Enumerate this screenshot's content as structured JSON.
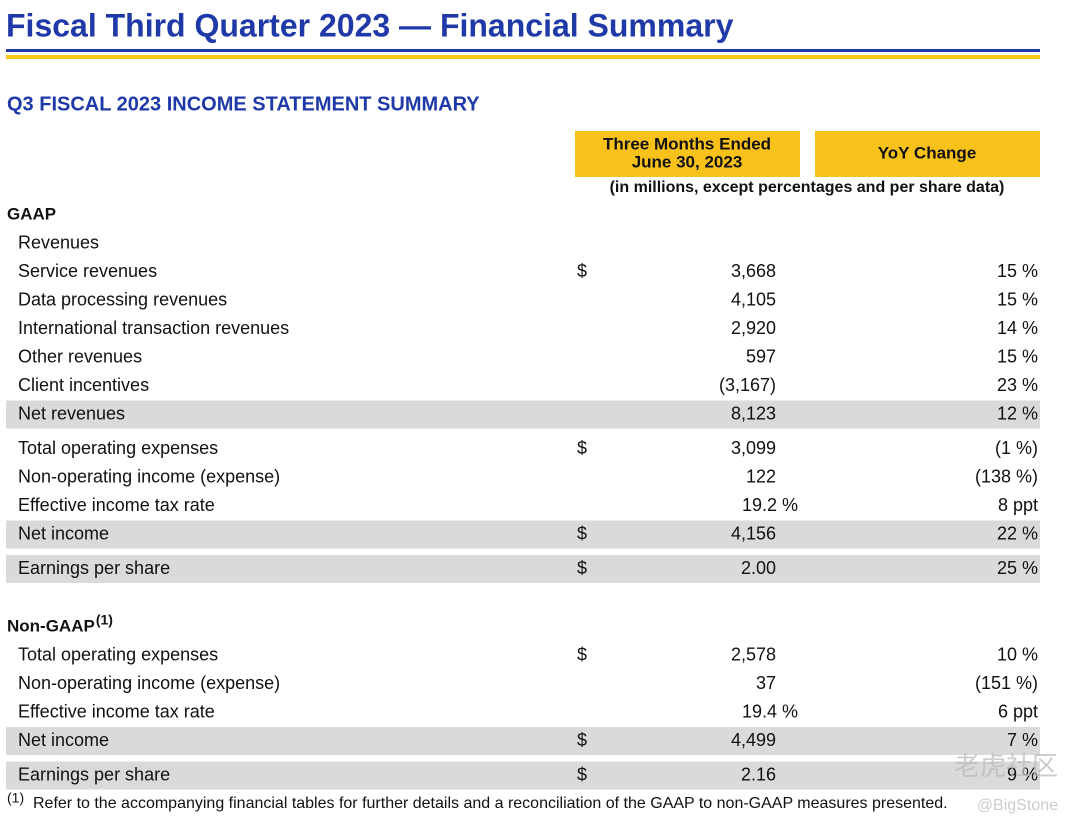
{
  "header": {
    "title": "Fiscal Third Quarter 2023 — Financial Summary",
    "subtitle": "Q3 FISCAL 2023 INCOME STATEMENT SUMMARY"
  },
  "table": {
    "columns": [
      [
        "Three Months Ended",
        "June 30, 2023"
      ],
      [
        "YoY Change"
      ]
    ],
    "units_note": "(in millions, except percentages and per share data)",
    "sections": [
      {
        "heading": "GAAP",
        "heading_note": null,
        "rows": [
          {
            "label": "Revenues",
            "currency": null,
            "value": null,
            "change": null,
            "shaded": false
          },
          {
            "label": "Service revenues",
            "currency": "$",
            "value": "3,668",
            "change": "15 %",
            "shaded": false
          },
          {
            "label": "Data processing revenues",
            "currency": null,
            "value": "4,105",
            "change": "15 %",
            "shaded": false
          },
          {
            "label": "International transaction revenues",
            "currency": null,
            "value": "2,920",
            "change": "14 %",
            "shaded": false
          },
          {
            "label": "Other revenues",
            "currency": null,
            "value": "597",
            "change": "15 %",
            "shaded": false
          },
          {
            "label": "Client incentives",
            "currency": null,
            "value": "(3,167)",
            "change": "23 %",
            "shaded": false
          },
          {
            "label": "Net revenues",
            "currency": null,
            "value": "8,123",
            "change": "12 %",
            "shaded": true
          },
          {
            "label": "Total operating expenses",
            "currency": "$",
            "value": "3,099",
            "change": "(1 %)",
            "shaded": false
          },
          {
            "label": "Non-operating income (expense)",
            "currency": null,
            "value": "122",
            "change": "(138 %)",
            "shaded": false
          },
          {
            "label": "Effective income tax rate",
            "currency": null,
            "value": "19.2 %",
            "change": "8 ppt",
            "shaded": false
          },
          {
            "label": "Net income",
            "currency": "$",
            "value": "4,156",
            "change": "22 %",
            "shaded": true
          },
          {
            "label": "Earnings per share",
            "currency": "$",
            "value": "2.00",
            "change": "25 %",
            "shaded": true
          }
        ]
      },
      {
        "heading": "Non-GAAP",
        "heading_note": "(1)",
        "rows": [
          {
            "label": "Total operating expenses",
            "currency": "$",
            "value": "2,578",
            "change": "10 %",
            "shaded": false
          },
          {
            "label": "Non-operating income (expense)",
            "currency": null,
            "value": "37",
            "change": "(151 %)",
            "shaded": false
          },
          {
            "label": "Effective income tax rate",
            "currency": null,
            "value": "19.4 %",
            "change": "6 ppt",
            "shaded": false
          },
          {
            "label": "Net income",
            "currency": "$",
            "value": "4,499",
            "change": "7 %",
            "shaded": true
          },
          {
            "label": "Earnings per share",
            "currency": "$",
            "value": "2.16",
            "change": "9 %",
            "shaded": true
          }
        ]
      }
    ]
  },
  "footnote": {
    "marker": "(1)",
    "text": "Refer to the accompanying financial tables for further details and a reconciliation of the GAAP to non-GAAP measures presented."
  },
  "watermark": {
    "brand": "老虎社区",
    "user": "@BigStone"
  }
}
